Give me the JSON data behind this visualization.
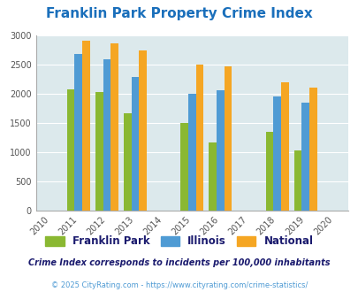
{
  "title": "Franklin Park Property Crime Index",
  "all_years": [
    2010,
    2011,
    2012,
    2013,
    2014,
    2015,
    2016,
    2017,
    2018,
    2019,
    2020
  ],
  "data_years": [
    2011,
    2012,
    2013,
    2015,
    2016,
    2018,
    2019
  ],
  "franklin_park": [
    2075,
    2030,
    1665,
    1490,
    1155,
    1350,
    1020
  ],
  "illinois": [
    2670,
    2585,
    2280,
    2000,
    2055,
    1945,
    1850
  ],
  "national": [
    2900,
    2855,
    2740,
    2495,
    2465,
    2185,
    2100
  ],
  "fp_color": "#8ab832",
  "il_color": "#4f9bd4",
  "nat_color": "#f5a623",
  "bg_color": "#dce9ec",
  "ylim": [
    0,
    3000
  ],
  "yticks": [
    0,
    500,
    1000,
    1500,
    2000,
    2500,
    3000
  ],
  "bar_width": 0.27,
  "title_color": "#1a6fbb",
  "subtitle": "Crime Index corresponds to incidents per 100,000 inhabitants",
  "subtitle_color": "#1a1a6e",
  "footer": "© 2025 CityRating.com - https://www.cityrating.com/crime-statistics/",
  "footer_color": "#4f9bd4",
  "legend_labels": [
    "Franklin Park",
    "Illinois",
    "National"
  ],
  "legend_text_color": "#1a1a6e",
  "tick_fontsize": 7,
  "title_fontsize": 11
}
